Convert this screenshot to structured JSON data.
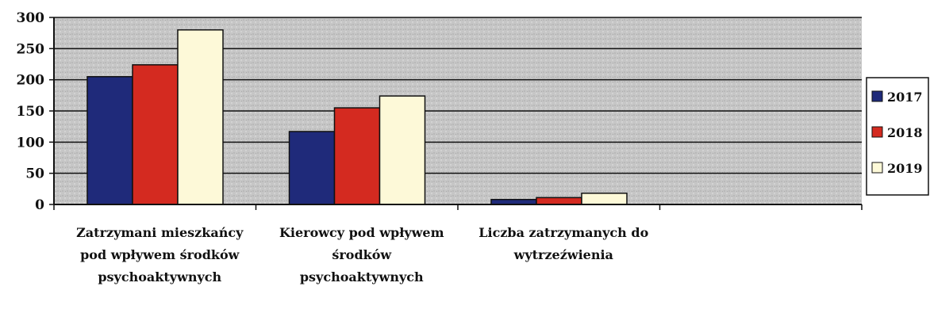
{
  "chart_data": {
    "type": "bar",
    "title": "",
    "xlabel": "",
    "ylabel": "",
    "categories": [
      "Zatrzymani mieszkańcy pod wpływem środków psychoaktywnych",
      "Kierowcy pod wpływem środków psychoaktywnych",
      "Liczba zatrzymanych do wytrzeźwienia",
      ""
    ],
    "series": [
      {
        "name": "2017",
        "color": "#1f2a7a",
        "values": [
          205,
          117,
          8,
          null
        ]
      },
      {
        "name": "2018",
        "color": "#d42a20",
        "values": [
          224,
          155,
          11,
          null
        ]
      },
      {
        "name": "2019",
        "color": "#fdf9d8",
        "values": [
          280,
          174,
          18,
          null
        ]
      }
    ],
    "ylim": [
      0,
      300
    ],
    "yticks": [
      "0",
      "50",
      "100",
      "150",
      "200",
      "250",
      "300"
    ],
    "grid": true,
    "legend_position": "right",
    "plot_background": "#c8c8c8"
  }
}
